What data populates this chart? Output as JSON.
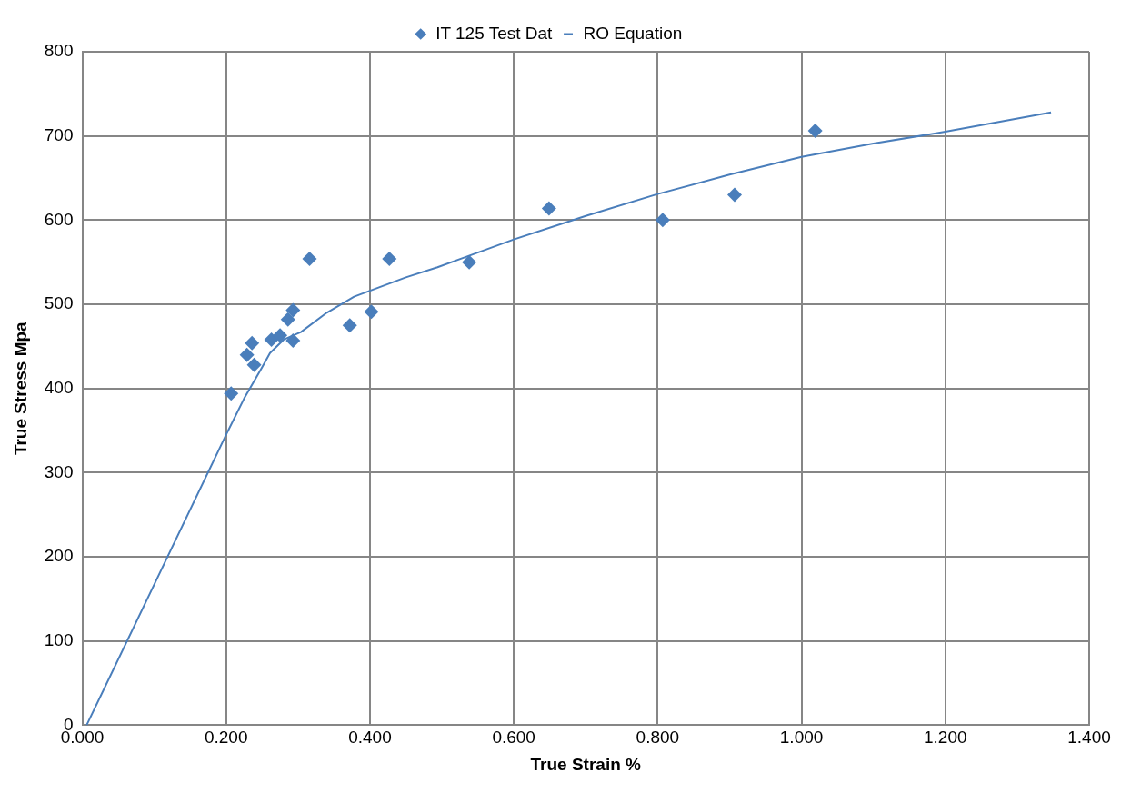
{
  "chart_data": {
    "type": "scatter",
    "xlabel": "True Strain %",
    "ylabel": "True Stress Mpa",
    "xlim": [
      0,
      1.4
    ],
    "xticks": [
      {
        "value": 0,
        "label": "0.000"
      },
      {
        "value": 0.2,
        "label": "0.200"
      },
      {
        "value": 0.4,
        "label": "0.400"
      },
      {
        "value": 0.6,
        "label": "0.600"
      },
      {
        "value": 0.8,
        "label": "0.800"
      },
      {
        "value": 1.0,
        "label": "1.000"
      },
      {
        "value": 1.2,
        "label": "1.200"
      },
      {
        "value": 1.4,
        "label": "1.400"
      }
    ],
    "ylim": [
      0,
      800
    ],
    "yticks": [
      0,
      100,
      200,
      300,
      400,
      500,
      600,
      700,
      800
    ],
    "grid": true,
    "legend": "top",
    "series": [
      {
        "name": "IT 125 Test Dat",
        "marker": "diamond",
        "color": "#4a7ebb",
        "x": [
          0.207,
          0.229,
          0.236,
          0.239,
          0.263,
          0.275,
          0.293,
          0.286,
          0.293,
          0.316,
          0.372,
          0.402,
          0.427,
          0.538,
          0.649,
          0.807,
          0.907,
          1.019
        ],
        "values": [
          394,
          440,
          454,
          428,
          458,
          463,
          457,
          482,
          493,
          554,
          475,
          491,
          554,
          550,
          614,
          600,
          630,
          706
        ]
      },
      {
        "name": "RO Equation",
        "type": "line",
        "marker": "none",
        "color": "#4a7ebb",
        "x": [
          0.006,
          0.1,
          0.2,
          0.225,
          0.25,
          0.261,
          0.28,
          0.304,
          0.34,
          0.378,
          0.45,
          0.494,
          0.6,
          0.7,
          0.8,
          0.9,
          1.0,
          1.1,
          1.2,
          1.347
        ],
        "values": [
          0,
          167,
          345,
          388,
          425,
          442,
          458,
          467,
          490,
          509,
          532,
          544,
          577,
          605,
          631,
          654,
          675,
          691,
          705,
          728
        ]
      }
    ]
  }
}
